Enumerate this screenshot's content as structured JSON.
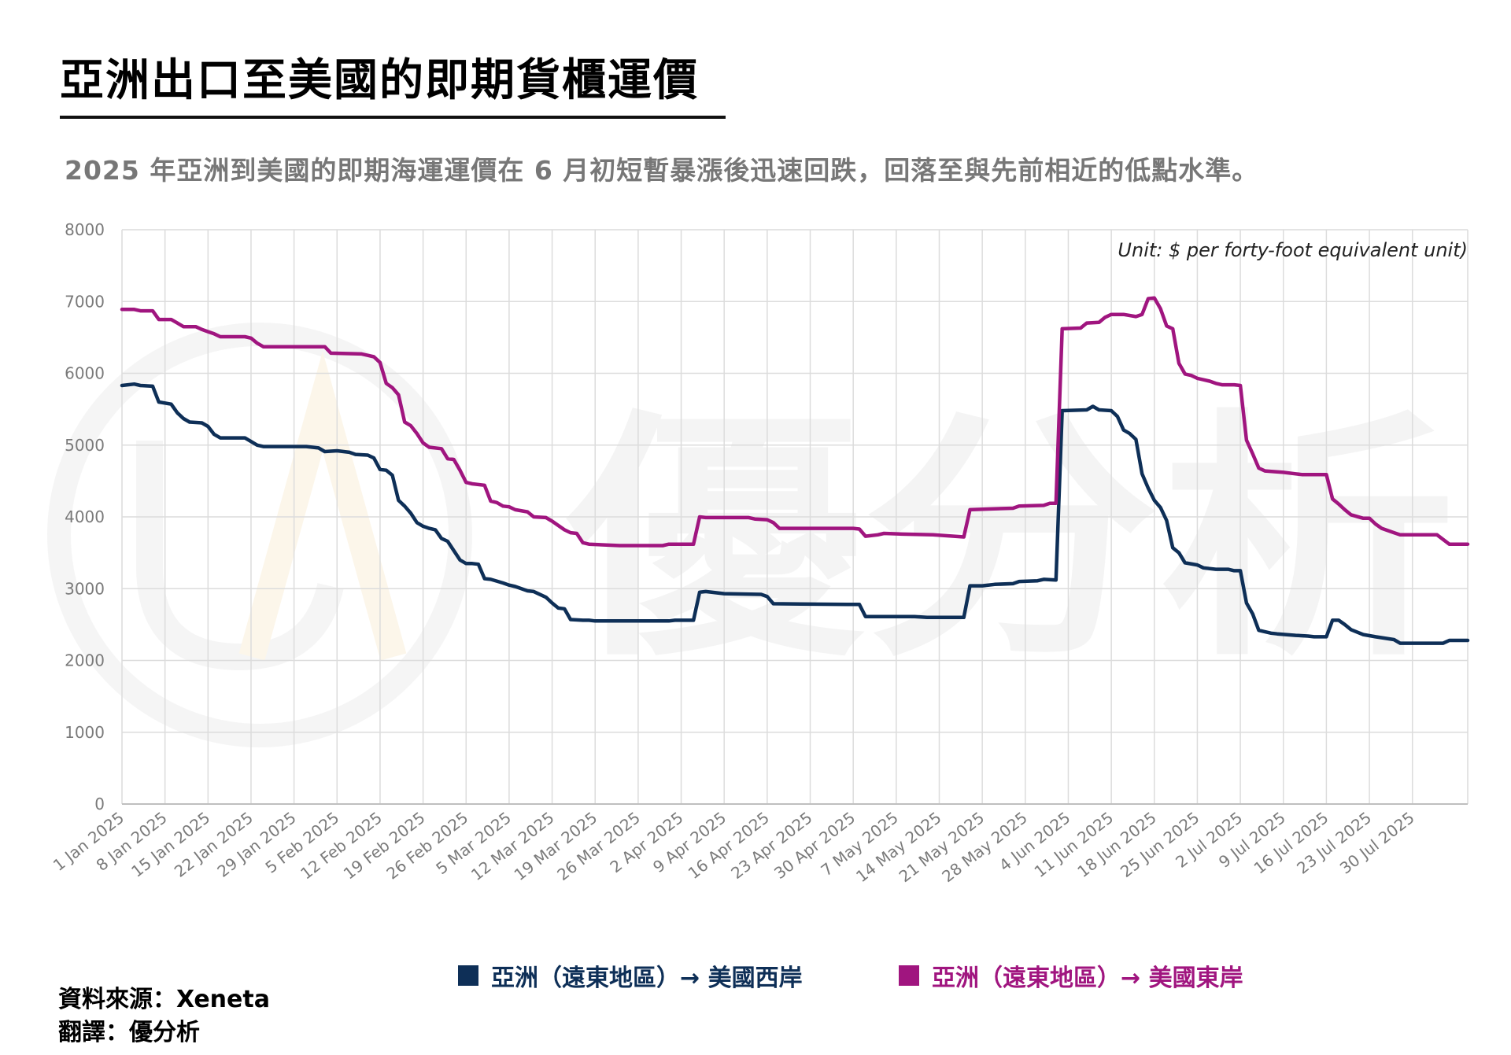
{
  "header": {
    "title": "亞洲出口至美國的即期貨櫃運價",
    "subtitle": "2025 年亞洲到美國的即期海運運價在 6 月初短暫暴漲後迅速回跌，回落至與先前相近的低點水準。"
  },
  "footer": {
    "source": "資料來源：Xeneta",
    "translation": "翻譯：優分析"
  },
  "watermark": "優分析",
  "chart_data": {
    "type": "line",
    "unit_note": "Unit: $ per forty-foot equivalent unit)",
    "ylim": [
      0,
      8000
    ],
    "y_ticks": [
      "0",
      "1000",
      "2000",
      "3000",
      "4000",
      "5000",
      "6000",
      "7000",
      "8000"
    ],
    "x_ticks": [
      "1 Jan 2025",
      "8 Jan 2025",
      "15 Jan 2025",
      "22 Jan 2025",
      "29 Jan 2025",
      "5 Feb 2025",
      "12 Feb 2025",
      "19 Feb 2025",
      "26 Feb 2025",
      "5 Mar 2025",
      "12 Mar 2025",
      "19 Mar 2025",
      "26 Mar 2025",
      "2 Apr 2025",
      "9 Apr 2025",
      "16 Apr 2025",
      "23 Apr 2025",
      "30 Apr 2025",
      "7 May 2025",
      "14 May 2025",
      "21 May 2025",
      "28 May 2025",
      "4 Jun 2025",
      "11 Jun 2025",
      "18 Jun 2025",
      "25 Jun 2025",
      "2 Jul 2025",
      "9 Jul 2025",
      "16 Jul 2025",
      "23 Jul 2025",
      "30 Jul 2025"
    ],
    "grid": true,
    "legend_position": "bottom",
    "series": [
      {
        "name": "亞洲（遠東地區）→ 美國西岸",
        "color": "#0e2f57",
        "points": [
          [
            "1 Jan 2025",
            5830
          ],
          [
            "3 Jan 2025",
            5850
          ],
          [
            "4 Jan 2025",
            5830
          ],
          [
            "6 Jan 2025",
            5820
          ],
          [
            "7 Jan 2025",
            5600
          ],
          [
            "9 Jan 2025",
            5570
          ],
          [
            "10 Jan 2025",
            5450
          ],
          [
            "11 Jan 2025",
            5370
          ],
          [
            "12 Jan 2025",
            5320
          ],
          [
            "14 Jan 2025",
            5310
          ],
          [
            "15 Jan 2025",
            5260
          ],
          [
            "16 Jan 2025",
            5150
          ],
          [
            "17 Jan 2025",
            5100
          ],
          [
            "21 Jan 2025",
            5100
          ],
          [
            "23 Jan 2025",
            5000
          ],
          [
            "24 Jan 2025",
            4980
          ],
          [
            "31 Jan 2025",
            4980
          ],
          [
            "2 Feb 2025",
            4960
          ],
          [
            "3 Feb 2025",
            4910
          ],
          [
            "5 Feb 2025",
            4920
          ],
          [
            "7 Feb 2025",
            4900
          ],
          [
            "8 Feb 2025",
            4870
          ],
          [
            "10 Feb 2025",
            4860
          ],
          [
            "11 Feb 2025",
            4820
          ],
          [
            "12 Feb 2025",
            4660
          ],
          [
            "13 Feb 2025",
            4650
          ],
          [
            "14 Feb 2025",
            4580
          ],
          [
            "15 Feb 2025",
            4230
          ],
          [
            "16 Feb 2025",
            4150
          ],
          [
            "17 Feb 2025",
            4050
          ],
          [
            "18 Feb 2025",
            3920
          ],
          [
            "19 Feb 2025",
            3870
          ],
          [
            "20 Feb 2025",
            3840
          ],
          [
            "21 Feb 2025",
            3820
          ],
          [
            "22 Feb 2025",
            3700
          ],
          [
            "23 Feb 2025",
            3660
          ],
          [
            "25 Feb 2025",
            3400
          ],
          [
            "26 Feb 2025",
            3350
          ],
          [
            "27 Feb 2025",
            3350
          ],
          [
            "28 Feb 2025",
            3340
          ],
          [
            "1 Mar 2025",
            3140
          ],
          [
            "2 Mar 2025",
            3130
          ],
          [
            "4 Mar 2025",
            3080
          ],
          [
            "5 Mar 2025",
            3050
          ],
          [
            "6 Mar 2025",
            3030
          ],
          [
            "8 Mar 2025",
            2970
          ],
          [
            "9 Mar 2025",
            2960
          ],
          [
            "11 Mar 2025",
            2880
          ],
          [
            "12 Mar 2025",
            2800
          ],
          [
            "13 Mar 2025",
            2730
          ],
          [
            "14 Mar 2025",
            2720
          ],
          [
            "15 Mar 2025",
            2570
          ],
          [
            "17 Mar 2025",
            2560
          ],
          [
            "18 Mar 2025",
            2560
          ],
          [
            "19 Mar 2025",
            2550
          ],
          [
            "21 Mar 2025",
            2550
          ],
          [
            "31 Mar 2025",
            2550
          ],
          [
            "1 Apr 2025",
            2560
          ],
          [
            "4 Apr 2025",
            2560
          ],
          [
            "5 Apr 2025",
            2950
          ],
          [
            "6 Apr 2025",
            2960
          ],
          [
            "9 Apr 2025",
            2930
          ],
          [
            "15 Apr 2025",
            2920
          ],
          [
            "16 Apr 2025",
            2890
          ],
          [
            "17 Apr 2025",
            2790
          ],
          [
            "29 Apr 2025",
            2780
          ],
          [
            "1 May 2025",
            2780
          ],
          [
            "2 May 2025",
            2610
          ],
          [
            "10 May 2025",
            2610
          ],
          [
            "12 May 2025",
            2600
          ],
          [
            "18 May 2025",
            2600
          ],
          [
            "19 May 2025",
            3040
          ],
          [
            "21 May 2025",
            3040
          ],
          [
            "23 May 2025",
            3060
          ],
          [
            "26 May 2025",
            3070
          ],
          [
            "27 May 2025",
            3100
          ],
          [
            "30 May 2025",
            3110
          ],
          [
            "31 May 2025",
            3130
          ],
          [
            "2 Jun 2025",
            3120
          ],
          [
            "3 Jun 2025",
            5480
          ],
          [
            "7 Jun 2025",
            5490
          ],
          [
            "8 Jun 2025",
            5540
          ],
          [
            "9 Jun 2025",
            5490
          ],
          [
            "11 Jun 2025",
            5480
          ],
          [
            "12 Jun 2025",
            5400
          ],
          [
            "13 Jun 2025",
            5210
          ],
          [
            "14 Jun 2025",
            5160
          ],
          [
            "15 Jun 2025",
            5080
          ],
          [
            "16 Jun 2025",
            4600
          ],
          [
            "17 Jun 2025",
            4400
          ],
          [
            "18 Jun 2025",
            4230
          ],
          [
            "19 Jun 2025",
            4130
          ],
          [
            "20 Jun 2025",
            3950
          ],
          [
            "21 Jun 2025",
            3570
          ],
          [
            "22 Jun 2025",
            3500
          ],
          [
            "23 Jun 2025",
            3360
          ],
          [
            "25 Jun 2025",
            3330
          ],
          [
            "26 Jun 2025",
            3290
          ],
          [
            "28 Jun 2025",
            3270
          ],
          [
            "30 Jun 2025",
            3270
          ],
          [
            "1 Jul 2025",
            3250
          ],
          [
            "2 Jul 2025",
            3250
          ],
          [
            "3 Jul 2025",
            2800
          ],
          [
            "4 Jul 2025",
            2650
          ],
          [
            "5 Jul 2025",
            2420
          ],
          [
            "7 Jul 2025",
            2380
          ],
          [
            "8 Jul 2025",
            2370
          ],
          [
            "11 Jul 2025",
            2350
          ],
          [
            "13 Jul 2025",
            2340
          ],
          [
            "14 Jul 2025",
            2330
          ],
          [
            "16 Jul 2025",
            2330
          ],
          [
            "17 Jul 2025",
            2560
          ],
          [
            "18 Jul 2025",
            2560
          ],
          [
            "19 Jul 2025",
            2500
          ],
          [
            "20 Jul 2025",
            2430
          ],
          [
            "22 Jul 2025",
            2360
          ],
          [
            "24 Jul 2025",
            2330
          ],
          [
            "27 Jul 2025",
            2290
          ],
          [
            "28 Jul 2025",
            2240
          ],
          [
            "4 Aug 2025",
            2240
          ],
          [
            "5 Aug 2025",
            2280
          ],
          [
            "8 Aug 2025",
            2280
          ]
        ]
      },
      {
        "name": "亞洲（遠東地區）→ 美國東岸",
        "color": "#a0157f",
        "points": [
          [
            "1 Jan 2025",
            6890
          ],
          [
            "3 Jan 2025",
            6890
          ],
          [
            "4 Jan 2025",
            6870
          ],
          [
            "6 Jan 2025",
            6870
          ],
          [
            "7 Jan 2025",
            6750
          ],
          [
            "9 Jan 2025",
            6750
          ],
          [
            "10 Jan 2025",
            6700
          ],
          [
            "11 Jan 2025",
            6650
          ],
          [
            "13 Jan 2025",
            6650
          ],
          [
            "14 Jan 2025",
            6610
          ],
          [
            "15 Jan 2025",
            6580
          ],
          [
            "16 Jan 2025",
            6550
          ],
          [
            "17 Jan 2025",
            6510
          ],
          [
            "21 Jan 2025",
            6510
          ],
          [
            "22 Jan 2025",
            6490
          ],
          [
            "23 Jan 2025",
            6420
          ],
          [
            "24 Jan 2025",
            6370
          ],
          [
            "3 Feb 2025",
            6370
          ],
          [
            "4 Feb 2025",
            6280
          ],
          [
            "9 Feb 2025",
            6270
          ],
          [
            "10 Feb 2025",
            6250
          ],
          [
            "11 Feb 2025",
            6230
          ],
          [
            "12 Feb 2025",
            6150
          ],
          [
            "13 Feb 2025",
            5860
          ],
          [
            "14 Feb 2025",
            5800
          ],
          [
            "15 Feb 2025",
            5700
          ],
          [
            "16 Feb 2025",
            5320
          ],
          [
            "17 Feb 2025",
            5270
          ],
          [
            "18 Feb 2025",
            5160
          ],
          [
            "19 Feb 2025",
            5030
          ],
          [
            "20 Feb 2025",
            4970
          ],
          [
            "22 Feb 2025",
            4950
          ],
          [
            "23 Feb 2025",
            4810
          ],
          [
            "24 Feb 2025",
            4800
          ],
          [
            "25 Feb 2025",
            4650
          ],
          [
            "26 Feb 2025",
            4480
          ],
          [
            "27 Feb 2025",
            4460
          ],
          [
            "1 Mar 2025",
            4440
          ],
          [
            "2 Mar 2025",
            4220
          ],
          [
            "3 Mar 2025",
            4200
          ],
          [
            "4 Mar 2025",
            4150
          ],
          [
            "5 Mar 2025",
            4140
          ],
          [
            "6 Mar 2025",
            4100
          ],
          [
            "8 Mar 2025",
            4070
          ],
          [
            "9 Mar 2025",
            4000
          ],
          [
            "11 Mar 2025",
            3990
          ],
          [
            "12 Mar 2025",
            3940
          ],
          [
            "14 Mar 2025",
            3820
          ],
          [
            "15 Mar 2025",
            3780
          ],
          [
            "16 Mar 2025",
            3770
          ],
          [
            "17 Mar 2025",
            3640
          ],
          [
            "18 Mar 2025",
            3620
          ],
          [
            "23 Mar 2025",
            3600
          ],
          [
            "30 Mar 2025",
            3600
          ],
          [
            "31 Mar 2025",
            3620
          ],
          [
            "4 Apr 2025",
            3620
          ],
          [
            "5 Apr 2025",
            4000
          ],
          [
            "6 Apr 2025",
            3990
          ],
          [
            "13 Apr 2025",
            3990
          ],
          [
            "14 Apr 2025",
            3970
          ],
          [
            "16 Apr 2025",
            3960
          ],
          [
            "17 Apr 2025",
            3920
          ],
          [
            "18 Apr 2025",
            3840
          ],
          [
            "30 Apr 2025",
            3840
          ],
          [
            "1 May 2025",
            3830
          ],
          [
            "2 May 2025",
            3730
          ],
          [
            "4 May 2025",
            3750
          ],
          [
            "5 May 2025",
            3770
          ],
          [
            "8 May 2025",
            3760
          ],
          [
            "13 May 2025",
            3750
          ],
          [
            "18 May 2025",
            3720
          ],
          [
            "19 May 2025",
            4100
          ],
          [
            "22 May 2025",
            4110
          ],
          [
            "26 May 2025",
            4120
          ],
          [
            "27 May 2025",
            4150
          ],
          [
            "31 May 2025",
            4160
          ],
          [
            "1 Jun 2025",
            4190
          ],
          [
            "2 Jun 2025",
            4190
          ],
          [
            "3 Jun 2025",
            6620
          ],
          [
            "6 Jun 2025",
            6630
          ],
          [
            "7 Jun 2025",
            6700
          ],
          [
            "9 Jun 2025",
            6710
          ],
          [
            "10 Jun 2025",
            6780
          ],
          [
            "11 Jun 2025",
            6820
          ],
          [
            "13 Jun 2025",
            6820
          ],
          [
            "15 Jun 2025",
            6790
          ],
          [
            "16 Jun 2025",
            6820
          ],
          [
            "17 Jun 2025",
            7040
          ],
          [
            "18 Jun 2025",
            7050
          ],
          [
            "19 Jun 2025",
            6900
          ],
          [
            "20 Jun 2025",
            6660
          ],
          [
            "21 Jun 2025",
            6620
          ],
          [
            "22 Jun 2025",
            6140
          ],
          [
            "23 Jun 2025",
            5990
          ],
          [
            "24 Jun 2025",
            5970
          ],
          [
            "25 Jun 2025",
            5930
          ],
          [
            "27 Jun 2025",
            5890
          ],
          [
            "28 Jun 2025",
            5860
          ],
          [
            "29 Jun 2025",
            5840
          ],
          [
            "1 Jul 2025",
            5840
          ],
          [
            "2 Jul 2025",
            5830
          ],
          [
            "3 Jul 2025",
            5070
          ],
          [
            "4 Jul 2025",
            4880
          ],
          [
            "5 Jul 2025",
            4680
          ],
          [
            "6 Jul 2025",
            4640
          ],
          [
            "9 Jul 2025",
            4620
          ],
          [
            "11 Jul 2025",
            4600
          ],
          [
            "12 Jul 2025",
            4590
          ],
          [
            "16 Jul 2025",
            4590
          ],
          [
            "17 Jul 2025",
            4250
          ],
          [
            "18 Jul 2025",
            4180
          ],
          [
            "19 Jul 2025",
            4100
          ],
          [
            "20 Jul 2025",
            4030
          ],
          [
            "22 Jul 2025",
            3980
          ],
          [
            "23 Jul 2025",
            3980
          ],
          [
            "24 Jul 2025",
            3900
          ],
          [
            "25 Jul 2025",
            3840
          ],
          [
            "27 Jul 2025",
            3780
          ],
          [
            "28 Jul 2025",
            3750
          ],
          [
            "3 Aug 2025",
            3750
          ],
          [
            "5 Aug 2025",
            3620
          ],
          [
            "8 Aug 2025",
            3620
          ]
        ]
      }
    ]
  }
}
